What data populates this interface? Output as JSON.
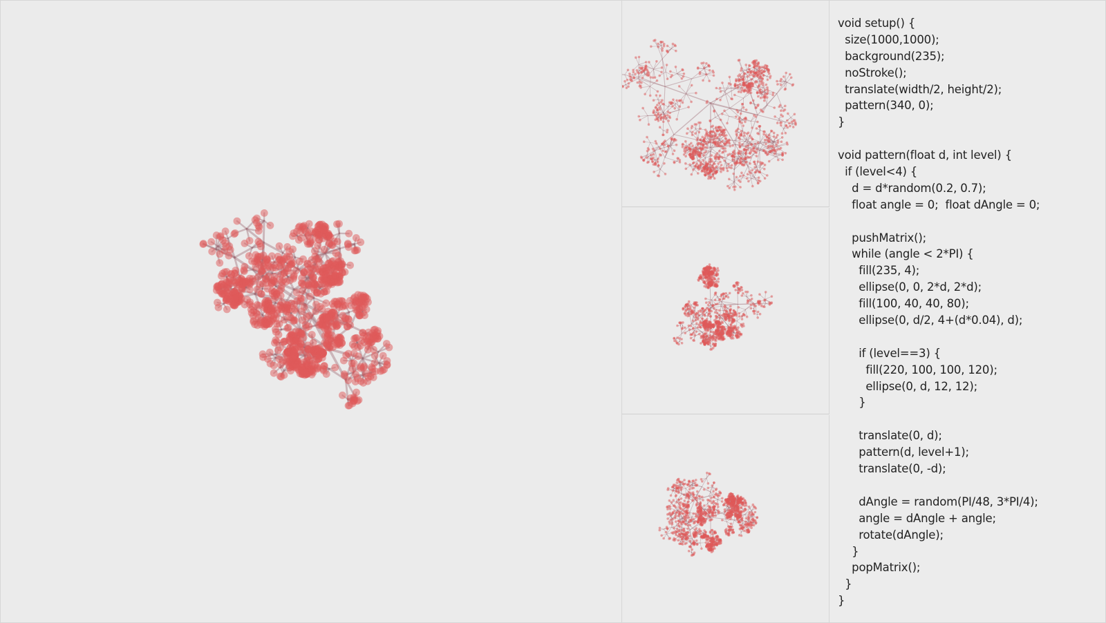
{
  "colors": {
    "background": "#ebebeb",
    "stem": "#a06e78",
    "petal": "#e05a5a",
    "code_text": "#222222"
  },
  "code": {
    "lines": [
      "void setup() {",
      "  size(1000,1000);",
      "  background(235);",
      "  noStroke();",
      "  translate(width/2, height/2);",
      "  pattern(340, 0);",
      "}",
      "",
      "void pattern(float d, int level) {",
      "  if (level<4) {",
      "    d = d*random(0.2, 0.7);",
      "    float angle = 0;  float dAngle = 0;",
      "",
      "    pushMatrix();",
      "    while (angle < 2*PI) {",
      "      fill(235, 4);",
      "      ellipse(0, 0, 2*d, 2*d);",
      "      fill(100, 40, 40, 80);",
      "      ellipse(0, d/2, 4+(d*0.04), d);",
      "",
      "      if (level==3) {",
      "        fill(220, 100, 100, 120);",
      "        ellipse(0, d, 12, 12);",
      "      }",
      "",
      "      translate(0, d);",
      "      pattern(d, level+1);",
      "      translate(0, -d);",
      "",
      "      dAngle = random(PI/48, 3*PI/4);",
      "      angle = dAngle + angle;",
      "      rotate(dAngle);",
      "    }",
      "    popMatrix();",
      "  }",
      "}"
    ]
  }
}
